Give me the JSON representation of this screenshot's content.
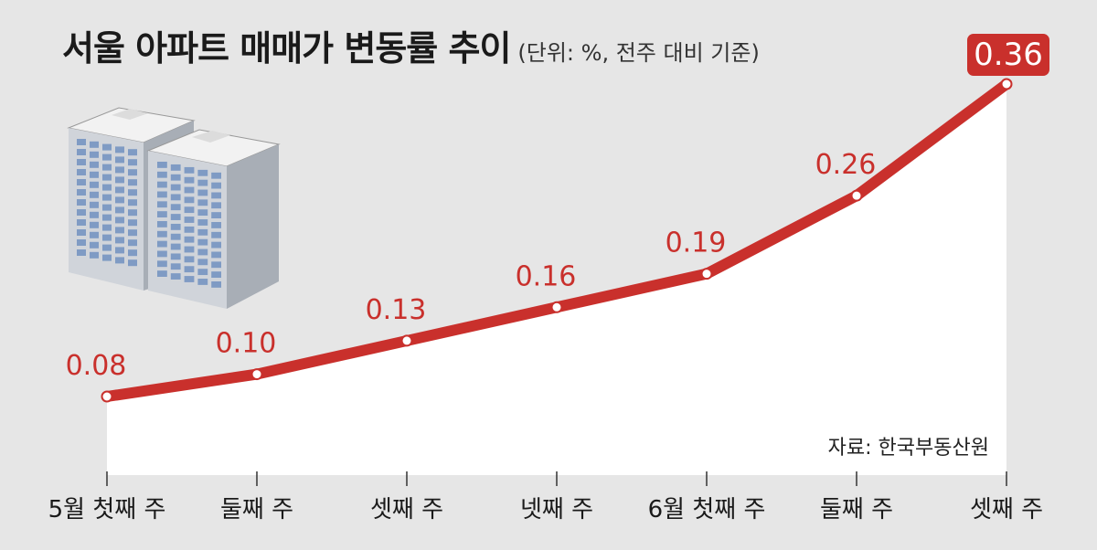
{
  "header": {
    "title": "서울 아파트 매매가 변동률 추이",
    "subtitle": "(단위: %, 전주 대비 기준)"
  },
  "source": "자료: 한국부동산원",
  "colors": {
    "accent": "#c9302c",
    "background": "#e6e6e6",
    "area": "#ffffff"
  },
  "illustration": {
    "icon": "apartment-buildings-icon"
  },
  "chart_data": {
    "type": "line",
    "title": "서울 아파트 매매가 변동률 추이",
    "subtitle": "(단위: %, 전주 대비 기준)",
    "categories": [
      "5월 첫째 주",
      "둘째 주",
      "셋째 주",
      "넷째 주",
      "6월 첫째 주",
      "둘째 주",
      "셋째 주"
    ],
    "value_labels": [
      "0.08",
      "0.10",
      "0.13",
      "0.16",
      "0.19",
      "0.26",
      "0.36"
    ],
    "values": [
      0.08,
      0.1,
      0.13,
      0.16,
      0.19,
      0.26,
      0.36
    ],
    "highlight_last": true,
    "area_fill": true,
    "source": "자료: 한국부동산원"
  }
}
